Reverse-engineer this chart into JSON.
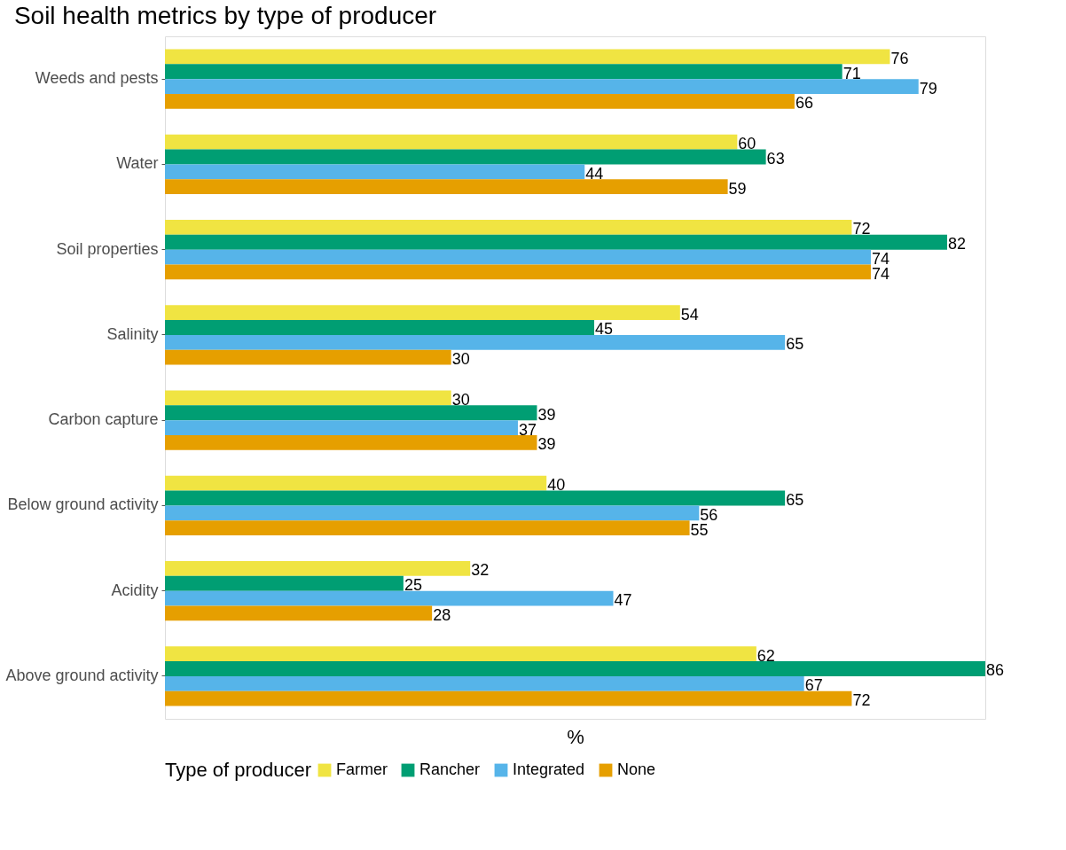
{
  "chart_data": {
    "type": "bar",
    "orientation": "horizontal",
    "title": "Soil health metrics by type of producer",
    "xlabel": "%",
    "legend_title": "Type of producer",
    "categories": [
      "Weeds and pests",
      "Water",
      "Soil properties",
      "Salinity",
      "Carbon capture",
      "Below ground activity",
      "Acidity",
      "Above ground activity"
    ],
    "series": [
      {
        "name": "Farmer",
        "color": "#f0e442",
        "values": [
          76,
          60,
          72,
          54,
          30,
          40,
          32,
          62
        ]
      },
      {
        "name": "Rancher",
        "color": "#009e73",
        "values": [
          71,
          63,
          82,
          45,
          39,
          65,
          25,
          86
        ]
      },
      {
        "name": "Integrated",
        "color": "#56b4e9",
        "values": [
          79,
          44,
          74,
          65,
          37,
          56,
          47,
          67
        ]
      },
      {
        "name": "None",
        "color": "#e69f00",
        "values": [
          66,
          59,
          74,
          30,
          39,
          55,
          28,
          72
        ]
      }
    ],
    "data_labels": true,
    "legend": "bottom",
    "grid": false,
    "tick_labels": "y"
  }
}
